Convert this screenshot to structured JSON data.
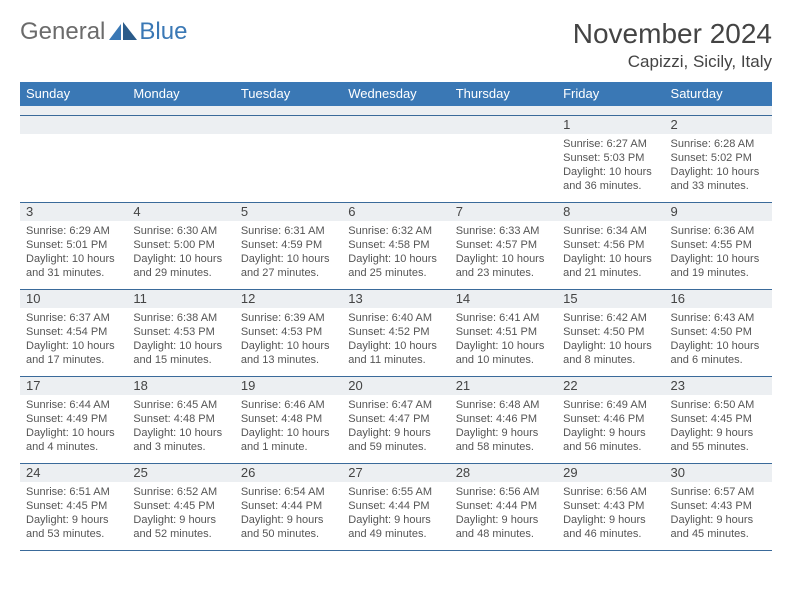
{
  "logo": {
    "part1": "General",
    "part2": "Blue"
  },
  "title": "November 2024",
  "location": "Capizzi, Sicily, Italy",
  "day_headers": [
    "Sunday",
    "Monday",
    "Tuesday",
    "Wednesday",
    "Thursday",
    "Friday",
    "Saturday"
  ],
  "colors": {
    "header_bg": "#3a78b5",
    "spacer_bg": "#eceff2",
    "rule": "#3a6a9a",
    "logo_gray": "#6b6b6b",
    "logo_blue": "#3a78b5"
  },
  "weeks": [
    [
      {
        "n": "",
        "empty": true
      },
      {
        "n": "",
        "empty": true
      },
      {
        "n": "",
        "empty": true
      },
      {
        "n": "",
        "empty": true
      },
      {
        "n": "",
        "empty": true
      },
      {
        "n": "1",
        "sr": "Sunrise: 6:27 AM",
        "ss": "Sunset: 5:03 PM",
        "dl1": "Daylight: 10 hours",
        "dl2": "and 36 minutes."
      },
      {
        "n": "2",
        "sr": "Sunrise: 6:28 AM",
        "ss": "Sunset: 5:02 PM",
        "dl1": "Daylight: 10 hours",
        "dl2": "and 33 minutes."
      }
    ],
    [
      {
        "n": "3",
        "sr": "Sunrise: 6:29 AM",
        "ss": "Sunset: 5:01 PM",
        "dl1": "Daylight: 10 hours",
        "dl2": "and 31 minutes."
      },
      {
        "n": "4",
        "sr": "Sunrise: 6:30 AM",
        "ss": "Sunset: 5:00 PM",
        "dl1": "Daylight: 10 hours",
        "dl2": "and 29 minutes."
      },
      {
        "n": "5",
        "sr": "Sunrise: 6:31 AM",
        "ss": "Sunset: 4:59 PM",
        "dl1": "Daylight: 10 hours",
        "dl2": "and 27 minutes."
      },
      {
        "n": "6",
        "sr": "Sunrise: 6:32 AM",
        "ss": "Sunset: 4:58 PM",
        "dl1": "Daylight: 10 hours",
        "dl2": "and 25 minutes."
      },
      {
        "n": "7",
        "sr": "Sunrise: 6:33 AM",
        "ss": "Sunset: 4:57 PM",
        "dl1": "Daylight: 10 hours",
        "dl2": "and 23 minutes."
      },
      {
        "n": "8",
        "sr": "Sunrise: 6:34 AM",
        "ss": "Sunset: 4:56 PM",
        "dl1": "Daylight: 10 hours",
        "dl2": "and 21 minutes."
      },
      {
        "n": "9",
        "sr": "Sunrise: 6:36 AM",
        "ss": "Sunset: 4:55 PM",
        "dl1": "Daylight: 10 hours",
        "dl2": "and 19 minutes."
      }
    ],
    [
      {
        "n": "10",
        "sr": "Sunrise: 6:37 AM",
        "ss": "Sunset: 4:54 PM",
        "dl1": "Daylight: 10 hours",
        "dl2": "and 17 minutes."
      },
      {
        "n": "11",
        "sr": "Sunrise: 6:38 AM",
        "ss": "Sunset: 4:53 PM",
        "dl1": "Daylight: 10 hours",
        "dl2": "and 15 minutes."
      },
      {
        "n": "12",
        "sr": "Sunrise: 6:39 AM",
        "ss": "Sunset: 4:53 PM",
        "dl1": "Daylight: 10 hours",
        "dl2": "and 13 minutes."
      },
      {
        "n": "13",
        "sr": "Sunrise: 6:40 AM",
        "ss": "Sunset: 4:52 PM",
        "dl1": "Daylight: 10 hours",
        "dl2": "and 11 minutes."
      },
      {
        "n": "14",
        "sr": "Sunrise: 6:41 AM",
        "ss": "Sunset: 4:51 PM",
        "dl1": "Daylight: 10 hours",
        "dl2": "and 10 minutes."
      },
      {
        "n": "15",
        "sr": "Sunrise: 6:42 AM",
        "ss": "Sunset: 4:50 PM",
        "dl1": "Daylight: 10 hours",
        "dl2": "and 8 minutes."
      },
      {
        "n": "16",
        "sr": "Sunrise: 6:43 AM",
        "ss": "Sunset: 4:50 PM",
        "dl1": "Daylight: 10 hours",
        "dl2": "and 6 minutes."
      }
    ],
    [
      {
        "n": "17",
        "sr": "Sunrise: 6:44 AM",
        "ss": "Sunset: 4:49 PM",
        "dl1": "Daylight: 10 hours",
        "dl2": "and 4 minutes."
      },
      {
        "n": "18",
        "sr": "Sunrise: 6:45 AM",
        "ss": "Sunset: 4:48 PM",
        "dl1": "Daylight: 10 hours",
        "dl2": "and 3 minutes."
      },
      {
        "n": "19",
        "sr": "Sunrise: 6:46 AM",
        "ss": "Sunset: 4:48 PM",
        "dl1": "Daylight: 10 hours",
        "dl2": "and 1 minute."
      },
      {
        "n": "20",
        "sr": "Sunrise: 6:47 AM",
        "ss": "Sunset: 4:47 PM",
        "dl1": "Daylight: 9 hours",
        "dl2": "and 59 minutes."
      },
      {
        "n": "21",
        "sr": "Sunrise: 6:48 AM",
        "ss": "Sunset: 4:46 PM",
        "dl1": "Daylight: 9 hours",
        "dl2": "and 58 minutes."
      },
      {
        "n": "22",
        "sr": "Sunrise: 6:49 AM",
        "ss": "Sunset: 4:46 PM",
        "dl1": "Daylight: 9 hours",
        "dl2": "and 56 minutes."
      },
      {
        "n": "23",
        "sr": "Sunrise: 6:50 AM",
        "ss": "Sunset: 4:45 PM",
        "dl1": "Daylight: 9 hours",
        "dl2": "and 55 minutes."
      }
    ],
    [
      {
        "n": "24",
        "sr": "Sunrise: 6:51 AM",
        "ss": "Sunset: 4:45 PM",
        "dl1": "Daylight: 9 hours",
        "dl2": "and 53 minutes."
      },
      {
        "n": "25",
        "sr": "Sunrise: 6:52 AM",
        "ss": "Sunset: 4:45 PM",
        "dl1": "Daylight: 9 hours",
        "dl2": "and 52 minutes."
      },
      {
        "n": "26",
        "sr": "Sunrise: 6:54 AM",
        "ss": "Sunset: 4:44 PM",
        "dl1": "Daylight: 9 hours",
        "dl2": "and 50 minutes."
      },
      {
        "n": "27",
        "sr": "Sunrise: 6:55 AM",
        "ss": "Sunset: 4:44 PM",
        "dl1": "Daylight: 9 hours",
        "dl2": "and 49 minutes."
      },
      {
        "n": "28",
        "sr": "Sunrise: 6:56 AM",
        "ss": "Sunset: 4:44 PM",
        "dl1": "Daylight: 9 hours",
        "dl2": "and 48 minutes."
      },
      {
        "n": "29",
        "sr": "Sunrise: 6:56 AM",
        "ss": "Sunset: 4:43 PM",
        "dl1": "Daylight: 9 hours",
        "dl2": "and 46 minutes."
      },
      {
        "n": "30",
        "sr": "Sunrise: 6:57 AM",
        "ss": "Sunset: 4:43 PM",
        "dl1": "Daylight: 9 hours",
        "dl2": "and 45 minutes."
      }
    ]
  ]
}
